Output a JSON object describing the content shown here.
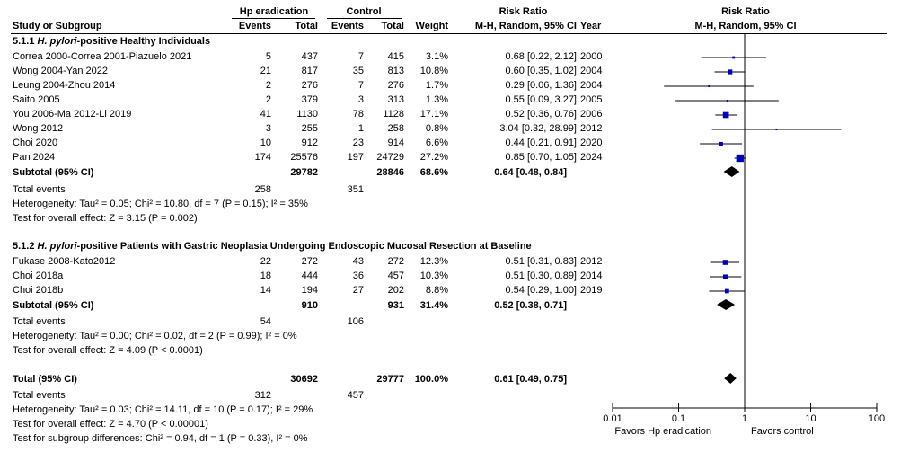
{
  "header": {
    "study": "Study or Subgroup",
    "hp_group": "Hp eradication",
    "control_group": "Control",
    "events": "Events",
    "total": "Total",
    "weight": "Weight",
    "rr_title": "Risk Ratio",
    "rr_method": "M-H, Random, 95% CI",
    "year": "Year",
    "plot_title": "Risk Ratio",
    "plot_method": "M-H, Random, 95% CI"
  },
  "groups": [
    {
      "code": "5.1.1",
      "title_italic": "H. pylori",
      "title_rest": "-positive Healthy Individuals",
      "studies": [
        {
          "name": "Correa 2000-Correa 2001-Piazuelo 2021",
          "e1": "5",
          "t1": "437",
          "e2": "7",
          "t2": "415",
          "w": "3.1%",
          "ci": "0.68 [0.22, 2.12]",
          "year": "2000"
        },
        {
          "name": "Wong 2004-Yan 2022",
          "e1": "21",
          "t1": "817",
          "e2": "35",
          "t2": "813",
          "w": "10.8%",
          "ci": "0.60 [0.35, 1.02]",
          "year": "2004"
        },
        {
          "name": "Leung 2004-Zhou 2014",
          "e1": "2",
          "t1": "276",
          "e2": "7",
          "t2": "276",
          "w": "1.7%",
          "ci": "0.29 [0.06, 1.36]",
          "year": "2004"
        },
        {
          "name": "Saito 2005",
          "e1": "2",
          "t1": "379",
          "e2": "3",
          "t2": "313",
          "w": "1.3%",
          "ci": "0.55 [0.09, 3.27]",
          "year": "2005"
        },
        {
          "name": "You 2006-Ma 2012-Li 2019",
          "e1": "41",
          "t1": "1130",
          "e2": "78",
          "t2": "1128",
          "w": "17.1%",
          "ci": "0.52 [0.36, 0.76]",
          "year": "2006"
        },
        {
          "name": "Wong 2012",
          "e1": "3",
          "t1": "255",
          "e2": "1",
          "t2": "258",
          "w": "0.8%",
          "ci": "3.04 [0.32, 28.99]",
          "year": "2012"
        },
        {
          "name": "Choi 2020",
          "e1": "10",
          "t1": "912",
          "e2": "23",
          "t2": "914",
          "w": "6.6%",
          "ci": "0.44 [0.21, 0.91]",
          "year": "2020"
        },
        {
          "name": "Pan 2024",
          "e1": "174",
          "t1": "25576",
          "e2": "197",
          "t2": "24729",
          "w": "27.2%",
          "ci": "0.85 [0.70, 1.05]",
          "year": "2024"
        }
      ],
      "subtotal": {
        "label": "Subtotal (95% CI)",
        "t1": "29782",
        "t2": "28846",
        "w": "68.6%",
        "ci": "0.64 [0.48, 0.84]"
      },
      "total_events": {
        "label": "Total events",
        "e1": "258",
        "e2": "351"
      },
      "heterogeneity": "Heterogeneity: Tau² = 0.05; Chi² = 10.80, df = 7 (P = 0.15); I² = 35%",
      "overall": "Test for overall effect: Z = 3.15 (P = 0.002)"
    },
    {
      "code": "5.1.2",
      "title_italic": "H. pylori",
      "title_rest": "-positive Patients with Gastric Neoplasia Undergoing Endoscopic Mucosal Resection at Baseline",
      "studies": [
        {
          "name": "Fukase 2008-Kato2012",
          "e1": "22",
          "t1": "272",
          "e2": "43",
          "t2": "272",
          "w": "12.3%",
          "ci": "0.51 [0.31, 0.83]",
          "year": "2012"
        },
        {
          "name": "Choi 2018a",
          "e1": "18",
          "t1": "444",
          "e2": "36",
          "t2": "457",
          "w": "10.3%",
          "ci": "0.51 [0.30, 0.89]",
          "year": "2014"
        },
        {
          "name": "Choi 2018b",
          "e1": "14",
          "t1": "194",
          "e2": "27",
          "t2": "202",
          "w": "8.8%",
          "ci": "0.54 [0.29, 1.00]",
          "year": "2019"
        }
      ],
      "subtotal": {
        "label": "Subtotal (95% CI)",
        "t1": "910",
        "t2": "931",
        "w": "31.4%",
        "ci": "0.52 [0.38, 0.71]"
      },
      "total_events": {
        "label": "Total events",
        "e1": "54",
        "e2": "106"
      },
      "heterogeneity": "Heterogeneity: Tau² = 0.00; Chi² = 0.02, df = 2 (P = 0.99); I² = 0%",
      "overall": "Test for overall effect: Z = 4.09 (P < 0.0001)"
    }
  ],
  "total": {
    "label": "Total (95% CI)",
    "t1": "30692",
    "t2": "29777",
    "w": "100.0%",
    "ci": "0.61 [0.49, 0.75]"
  },
  "total_events": {
    "label": "Total events",
    "e1": "312",
    "e2": "457"
  },
  "heterogeneity": "Heterogeneity: Tau² = 0.03; Chi² = 14.11, df = 10 (P = 0.17); I² = 29%",
  "overall": "Test for overall effect: Z = 4.70 (P < 0.00001)",
  "subgroup_diff": "Test for subgroup differences: Chi² = 0.94, df = 1 (P = 0.33), I² = 0%",
  "axis": {
    "ticks": [
      "0.01",
      "0.1",
      "1",
      "10",
      "100"
    ],
    "favors_left": "Favors Hp eradication",
    "favors_right": "Favors control"
  },
  "chart_data": {
    "type": "forest",
    "scale": "log",
    "xlim": [
      0.01,
      100
    ],
    "reference_line": 1,
    "marker_color": "#0000b0",
    "studies": [
      {
        "rr": 0.68,
        "lo": 0.22,
        "hi": 2.12,
        "weight": 3.1
      },
      {
        "rr": 0.6,
        "lo": 0.35,
        "hi": 1.02,
        "weight": 10.8
      },
      {
        "rr": 0.29,
        "lo": 0.06,
        "hi": 1.36,
        "weight": 1.7
      },
      {
        "rr": 0.55,
        "lo": 0.09,
        "hi": 3.27,
        "weight": 1.3
      },
      {
        "rr": 0.52,
        "lo": 0.36,
        "hi": 0.76,
        "weight": 17.1
      },
      {
        "rr": 3.04,
        "lo": 0.32,
        "hi": 28.99,
        "weight": 0.8
      },
      {
        "rr": 0.44,
        "lo": 0.21,
        "hi": 0.91,
        "weight": 6.6
      },
      {
        "rr": 0.85,
        "lo": 0.7,
        "hi": 1.05,
        "weight": 27.2
      },
      {
        "rr": 0.51,
        "lo": 0.31,
        "hi": 0.83,
        "weight": 12.3
      },
      {
        "rr": 0.51,
        "lo": 0.3,
        "hi": 0.89,
        "weight": 10.3
      },
      {
        "rr": 0.54,
        "lo": 0.29,
        "hi": 1.0,
        "weight": 8.8
      }
    ],
    "diamonds": [
      {
        "rr": 0.64,
        "lo": 0.48,
        "hi": 0.84
      },
      {
        "rr": 0.52,
        "lo": 0.38,
        "hi": 0.71
      },
      {
        "rr": 0.61,
        "lo": 0.49,
        "hi": 0.75
      }
    ]
  }
}
